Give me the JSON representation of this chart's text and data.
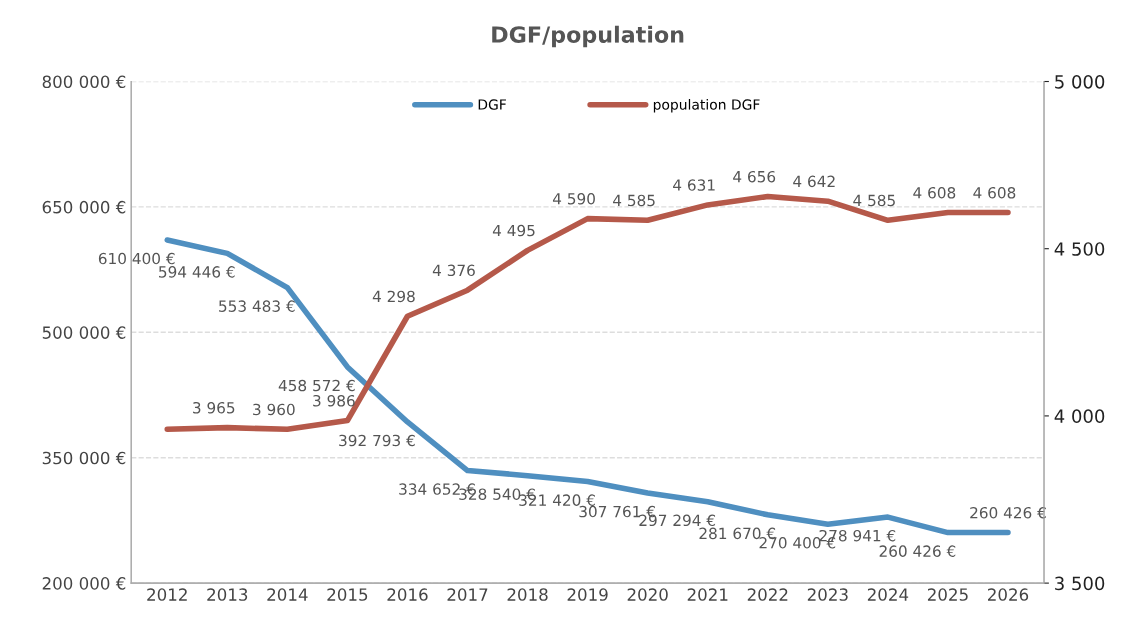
{
  "chart_data": {
    "type": "line",
    "title": "DGF/population",
    "categories": [
      "2012",
      "2013",
      "2014",
      "2015",
      "2016",
      "2017",
      "2018",
      "2019",
      "2020",
      "2021",
      "2022",
      "2023",
      "2024",
      "2025",
      "2026"
    ],
    "series": [
      {
        "name": "DGF",
        "color": "#4f8fc0",
        "values": [
          610400,
          594446,
          553483,
          458572,
          392793,
          334652,
          328540,
          321420,
          307761,
          297294,
          281670,
          270400,
          278941,
          260426,
          260426
        ],
        "value_labels": [
          "610 400 €",
          "594 446 €",
          "553 483 €",
          "458 572 €",
          "392 793 €",
          "334 652 €",
          "328 540 €",
          "321 420 €",
          "307 761 €",
          "297 294 €",
          "281 670 €",
          "270 400 €",
          "278 941 €",
          "260 426 €",
          "260 426 €"
        ]
      },
      {
        "name": "population DGF",
        "color": "#b5594a",
        "axis": "y2",
        "values": [
          3960,
          3965,
          3960,
          3986,
          4298,
          4376,
          4495,
          4590,
          4585,
          4631,
          4656,
          4642,
          4585,
          4608,
          4608
        ],
        "value_labels": [
          null,
          "3 965",
          "3 960",
          "3 986",
          "4 298",
          "4 376",
          "4 495",
          "4 590",
          "4 585",
          "4 631",
          "4 656",
          "4 642",
          "4 585",
          "4 608",
          "4 608"
        ]
      }
    ],
    "ylim": [
      200000,
      800000
    ],
    "yticks": [
      {
        "value": 200000,
        "label": "200 000 €"
      },
      {
        "value": 350000,
        "label": "350 000 €"
      },
      {
        "value": 500000,
        "label": "500 000 €"
      },
      {
        "value": 650000,
        "label": "650 000 €"
      },
      {
        "value": 800000,
        "label": "800 000 €"
      }
    ],
    "y2lim": [
      3500,
      5000
    ],
    "y2ticks": [
      {
        "value": 3500,
        "label": "3 500"
      },
      {
        "value": 4000,
        "label": "4 000"
      },
      {
        "value": 4500,
        "label": "4 500"
      },
      {
        "value": 5000,
        "label": "5 000"
      }
    ],
    "grid": "y",
    "legend": "top",
    "marker": "none",
    "line_style": "solid"
  }
}
